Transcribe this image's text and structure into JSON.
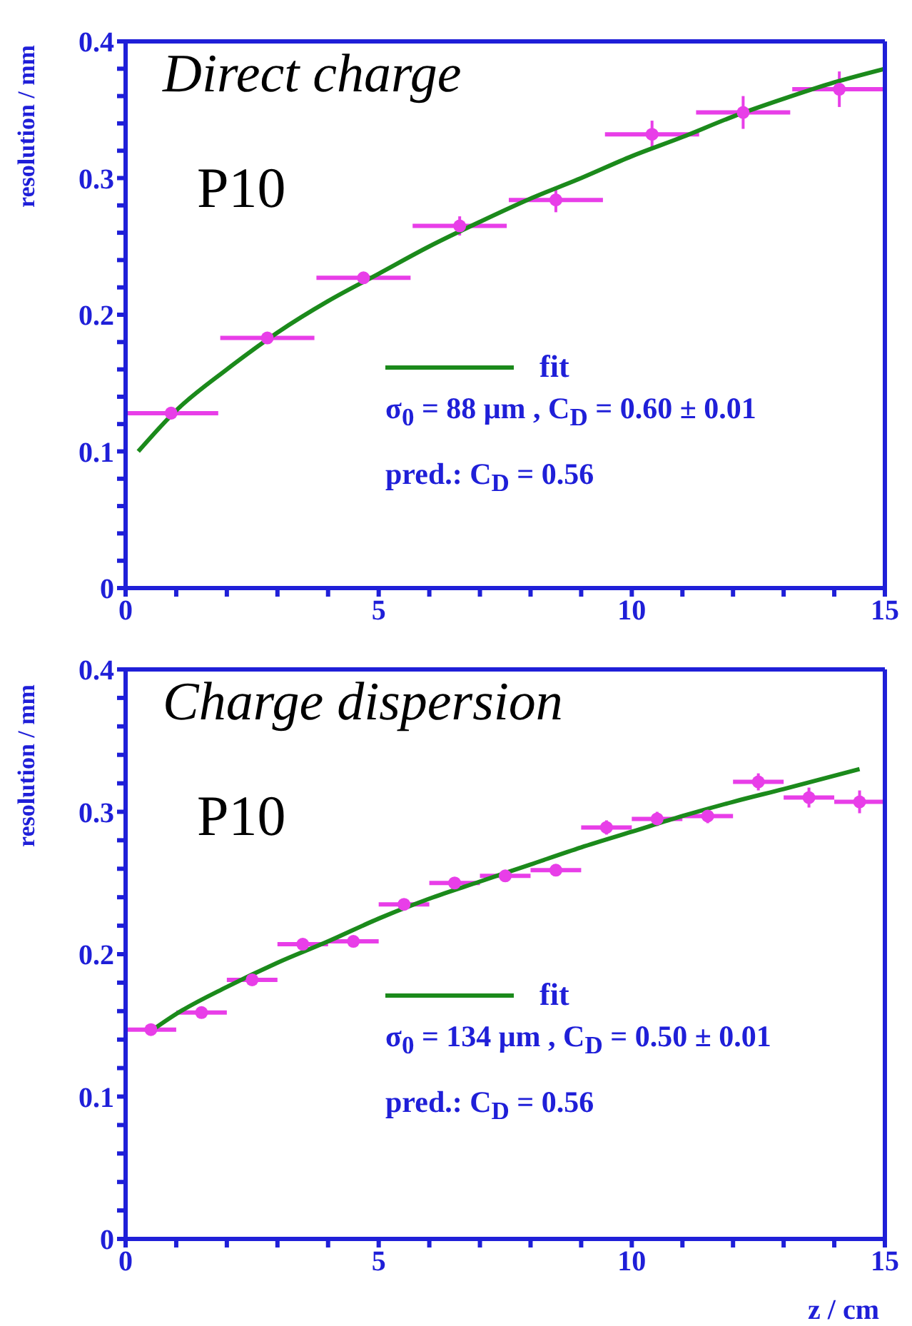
{
  "chart_data": [
    {
      "type": "scatter",
      "title": "Direct charge",
      "ylabel": "resolution / mm",
      "xlim": [
        0,
        15
      ],
      "xticks": [
        0,
        {
          "value": 1,
          "label": null
        },
        {
          "value": 2,
          "label": null
        },
        {
          "value": 3,
          "label": null
        },
        {
          "value": 4,
          "label": null
        },
        5,
        {
          "value": 6,
          "label": null
        },
        {
          "value": 7,
          "label": null
        },
        {
          "value": 8,
          "label": null
        },
        {
          "value": 9,
          "label": null
        },
        10,
        {
          "value": 11,
          "label": null
        },
        {
          "value": 12,
          "label": null
        },
        {
          "value": 13,
          "label": null
        },
        {
          "value": 14,
          "label": null
        },
        15
      ],
      "ylim": [
        0,
        0.4
      ],
      "yticks": [
        0,
        {
          "value": 0.02,
          "label": null
        },
        {
          "value": 0.04,
          "label": null
        },
        {
          "value": 0.06,
          "label": null
        },
        {
          "value": 0.08,
          "label": null
        },
        0.1,
        {
          "value": 0.12,
          "label": null
        },
        {
          "value": 0.14,
          "label": null
        },
        {
          "value": 0.16,
          "label": null
        },
        {
          "value": 0.18,
          "label": null
        },
        0.2,
        {
          "value": 0.22,
          "label": null
        },
        {
          "value": 0.24,
          "label": null
        },
        {
          "value": 0.26,
          "label": null
        },
        {
          "value": 0.28,
          "label": null
        },
        0.3,
        {
          "value": 0.32,
          "label": null
        },
        {
          "value": 0.34,
          "label": null
        },
        {
          "value": 0.36,
          "label": null
        },
        {
          "value": 0.38,
          "label": null
        },
        0.4
      ],
      "grid": false,
      "legend": "bottom left",
      "annotations": [
        "P10",
        "σ$_{0}$ = 88 μm , C$_{D}$ = 0.60 ± 0.01",
        "pred.: C$_{D}$ = 0.56"
      ],
      "series": [
        {
          "type": "scatter",
          "color": "#e83ee8",
          "marker": "circle",
          "x": [
            0.9,
            2.8,
            4.7,
            6.6,
            8.5,
            10.4,
            12.2,
            14.1
          ],
          "values": [
            0.128,
            0.183,
            0.227,
            0.265,
            0.284,
            0.332,
            0.348,
            0.365
          ],
          "errors": [
            0.003,
            0.003,
            0.004,
            0.007,
            0.009,
            0.01,
            0.012,
            0.013
          ],
          "xerrors": [
            0.93,
            0.93,
            0.93,
            0.93,
            0.93,
            0.93,
            0.93,
            0.93
          ]
        },
        {
          "type": "line",
          "name": "fit",
          "color": "#1b8a1b",
          "x": [
            0.25,
            1,
            2,
            3,
            4,
            5,
            6,
            7,
            8,
            9,
            10,
            11,
            12,
            13,
            14,
            15
          ],
          "values": [
            0.1,
            0.13,
            0.16,
            0.187,
            0.21,
            0.23,
            0.25,
            0.268,
            0.285,
            0.3,
            0.316,
            0.33,
            0.345,
            0.358,
            0.37,
            0.38
          ]
        }
      ]
    },
    {
      "type": "scatter",
      "title": "Charge dispersion",
      "ylabel": "resolution / mm",
      "xlabel": "z / cm",
      "xlim": [
        0,
        15
      ],
      "xticks": [
        0,
        {
          "value": 1,
          "label": null
        },
        {
          "value": 2,
          "label": null
        },
        {
          "value": 3,
          "label": null
        },
        {
          "value": 4,
          "label": null
        },
        5,
        {
          "value": 6,
          "label": null
        },
        {
          "value": 7,
          "label": null
        },
        {
          "value": 8,
          "label": null
        },
        {
          "value": 9,
          "label": null
        },
        10,
        {
          "value": 11,
          "label": null
        },
        {
          "value": 12,
          "label": null
        },
        {
          "value": 13,
          "label": null
        },
        {
          "value": 14,
          "label": null
        },
        15
      ],
      "ylim": [
        0,
        0.4
      ],
      "yticks": [
        0,
        {
          "value": 0.02,
          "label": null
        },
        {
          "value": 0.04,
          "label": null
        },
        {
          "value": 0.06,
          "label": null
        },
        {
          "value": 0.08,
          "label": null
        },
        0.1,
        {
          "value": 0.12,
          "label": null
        },
        {
          "value": 0.14,
          "label": null
        },
        {
          "value": 0.16,
          "label": null
        },
        {
          "value": 0.18,
          "label": null
        },
        0.2,
        {
          "value": 0.22,
          "label": null
        },
        {
          "value": 0.24,
          "label": null
        },
        {
          "value": 0.26,
          "label": null
        },
        {
          "value": 0.28,
          "label": null
        },
        0.3,
        {
          "value": 0.32,
          "label": null
        },
        {
          "value": 0.34,
          "label": null
        },
        {
          "value": 0.36,
          "label": null
        },
        {
          "value": 0.38,
          "label": null
        },
        0.4
      ],
      "grid": false,
      "legend": "bottom left",
      "annotations": [
        "P10",
        "σ$_{0}$ = 134 μm , C$_{D}$ = 0.50 ± 0.01",
        "pred.: C$_{D}$ = 0.56"
      ],
      "series": [
        {
          "type": "scatter",
          "color": "#e83ee8",
          "marker": "circle",
          "x": [
            0.5,
            1.5,
            2.5,
            3.5,
            4.5,
            5.5,
            6.5,
            7.5,
            8.5,
            9.5,
            10.5,
            11.5,
            12.5,
            13.5,
            14.5
          ],
          "values": [
            0.147,
            0.159,
            0.182,
            0.207,
            0.209,
            0.235,
            0.25,
            0.255,
            0.259,
            0.289,
            0.295,
            0.297,
            0.321,
            0.31,
            0.307
          ],
          "errors": [
            0.003,
            0.003,
            0.003,
            0.003,
            0.003,
            0.004,
            0.004,
            0.004,
            0.004,
            0.005,
            0.005,
            0.005,
            0.006,
            0.007,
            0.008
          ],
          "xerrors": [
            0.5,
            0.5,
            0.5,
            0.5,
            0.5,
            0.5,
            0.5,
            0.5,
            0.5,
            0.5,
            0.5,
            0.5,
            0.5,
            0.5,
            0.5
          ]
        },
        {
          "type": "line",
          "name": "fit",
          "color": "#1b8a1b",
          "x": [
            0.5,
            1,
            2,
            3,
            4,
            5,
            6,
            7,
            8,
            9,
            10,
            11,
            12,
            13,
            14.5
          ],
          "values": [
            0.146,
            0.158,
            0.177,
            0.194,
            0.209,
            0.225,
            0.239,
            0.251,
            0.263,
            0.275,
            0.286,
            0.297,
            0.307,
            0.316,
            0.33
          ]
        }
      ]
    }
  ]
}
